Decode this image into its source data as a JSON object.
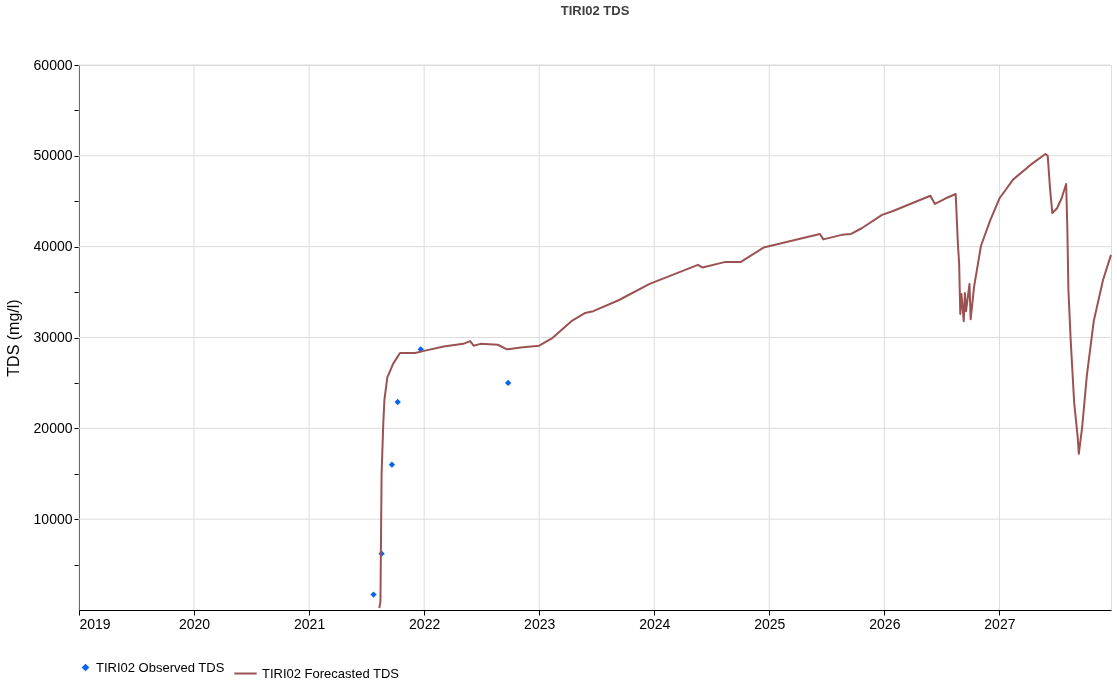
{
  "chart_data": {
    "type": "line",
    "title": "TIRI02 TDS",
    "ylabel": "TDS (mg/l)",
    "xlim": [
      2019,
      2027.97
    ],
    "xticks": [
      2019,
      2020,
      2021,
      2022,
      2023,
      2024,
      2025,
      2026,
      2027
    ],
    "ylim": [
      0,
      60000
    ],
    "yticks": [
      {
        "value": 5000,
        "label": null
      },
      10000,
      {
        "value": 15000,
        "label": null
      },
      20000,
      {
        "value": 25000,
        "label": null
      },
      30000,
      {
        "value": 35000,
        "label": null
      },
      40000,
      {
        "value": 45000,
        "label": null
      },
      50000,
      {
        "value": 55000,
        "label": null
      },
      60000
    ],
    "grid": true,
    "legend": "bottom",
    "series": [
      {
        "name": "TIRI02 Observed TDS",
        "type": "scatter",
        "marker": "diamond",
        "color": "#0a64f0",
        "x": [
          2021.56,
          2021.63,
          2021.72,
          2021.77,
          2021.97,
          2022.73
        ],
        "values": [
          1700,
          6200,
          16000,
          22900,
          28700,
          25000
        ]
      },
      {
        "name": "TIRI02 Forecasted TDS",
        "type": "line",
        "color": "#9b5252",
        "x": [
          2021.61,
          2021.62,
          2021.63,
          2021.645,
          2021.655,
          2021.68,
          2021.73,
          2021.79,
          2021.92,
          2021.99,
          2022.17,
          2022.34,
          2022.4,
          2022.43,
          2022.49,
          2022.64,
          2022.72,
          2022.84,
          2023.0,
          2023.11,
          2023.28,
          2023.4,
          2023.47,
          2023.69,
          2023.96,
          2024.38,
          2024.42,
          2024.61,
          2024.75,
          2024.95,
          2025.44,
          2025.47,
          2025.63,
          2025.71,
          2025.8,
          2025.98,
          2026.07,
          2026.4,
          2026.44,
          2026.53,
          2026.62,
          2026.64,
          2026.65,
          2026.66,
          2026.67,
          2026.69,
          2026.7,
          2026.71,
          2026.74,
          2026.75,
          2026.78,
          2026.84,
          2026.92,
          2027.0,
          2027.12,
          2027.27,
          2027.4,
          2027.42,
          2027.44,
          2027.46,
          2027.5,
          2027.54,
          2027.58,
          2027.59,
          2027.6,
          2027.62,
          2027.65,
          2027.68,
          2027.69,
          2027.72,
          2027.76,
          2027.82,
          2027.9,
          2027.97
        ],
        "values": [
          200,
          900,
          15000,
          20600,
          23200,
          25600,
          27100,
          28300,
          28300,
          28500,
          29000,
          29300,
          29600,
          29100,
          29300,
          29200,
          28700,
          28900,
          29100,
          29900,
          31800,
          32700,
          32900,
          34100,
          35900,
          38000,
          37700,
          38300,
          38300,
          39900,
          41400,
          40800,
          41300,
          41400,
          42000,
          43500,
          43900,
          45600,
          44700,
          45300,
          45800,
          40100,
          38200,
          32600,
          34800,
          31800,
          34900,
          32900,
          35900,
          32000,
          35600,
          40100,
          42900,
          45300,
          47400,
          49000,
          50200,
          50000,
          46400,
          43700,
          44200,
          45300,
          46900,
          42300,
          35200,
          29600,
          22800,
          19100,
          17200,
          20200,
          25800,
          31800,
          36300,
          39100
        ]
      }
    ]
  }
}
